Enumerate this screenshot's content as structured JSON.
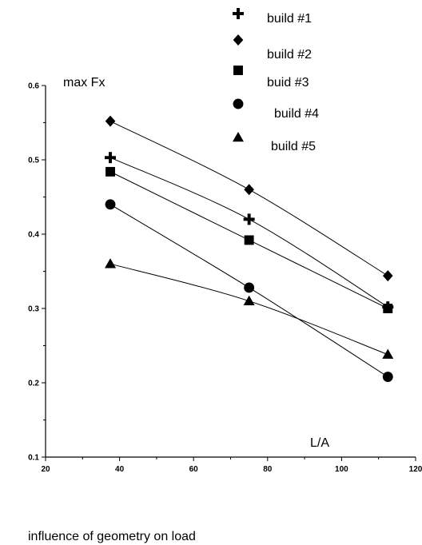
{
  "chart_data": {
    "type": "line",
    "caption": "influence of geometry on load",
    "ylabel": "max Fx",
    "xlabel": "L/A",
    "xlim": [
      20,
      120
    ],
    "ylim": [
      0.1,
      0.6
    ],
    "x_ticks": [
      20,
      40,
      60,
      80,
      100,
      120
    ],
    "y_ticks": [
      0.1,
      0.2,
      0.3,
      0.4,
      0.5,
      0.6
    ],
    "x_tick_labels": [
      "20",
      "40",
      "60",
      "80",
      "100",
      "120"
    ],
    "y_tick_labels": [
      "0.1",
      "0.2",
      "0.3",
      "0.4",
      "0.5",
      "0.6"
    ],
    "grid": false,
    "legend_position": "top-right",
    "series": [
      {
        "name": "build #1",
        "marker": "plus",
        "x": [
          37.5,
          75,
          112.5
        ],
        "y": [
          0.503,
          0.42,
          0.302
        ]
      },
      {
        "name": "build #2",
        "marker": "diamond",
        "x": [
          37.5,
          75,
          112.5
        ],
        "y": [
          0.552,
          0.46,
          0.344
        ]
      },
      {
        "name": "buid #3",
        "marker": "square",
        "x": [
          37.5,
          75,
          112.5
        ],
        "y": [
          0.484,
          0.392,
          0.3
        ]
      },
      {
        "name": "build #4",
        "marker": "circle",
        "x": [
          37.5,
          75,
          112.5
        ],
        "y": [
          0.44,
          0.328,
          0.208
        ]
      },
      {
        "name": "build #5",
        "marker": "triangle",
        "x": [
          37.5,
          75,
          112.5
        ],
        "y": [
          0.36,
          0.31,
          0.238
        ]
      }
    ]
  }
}
